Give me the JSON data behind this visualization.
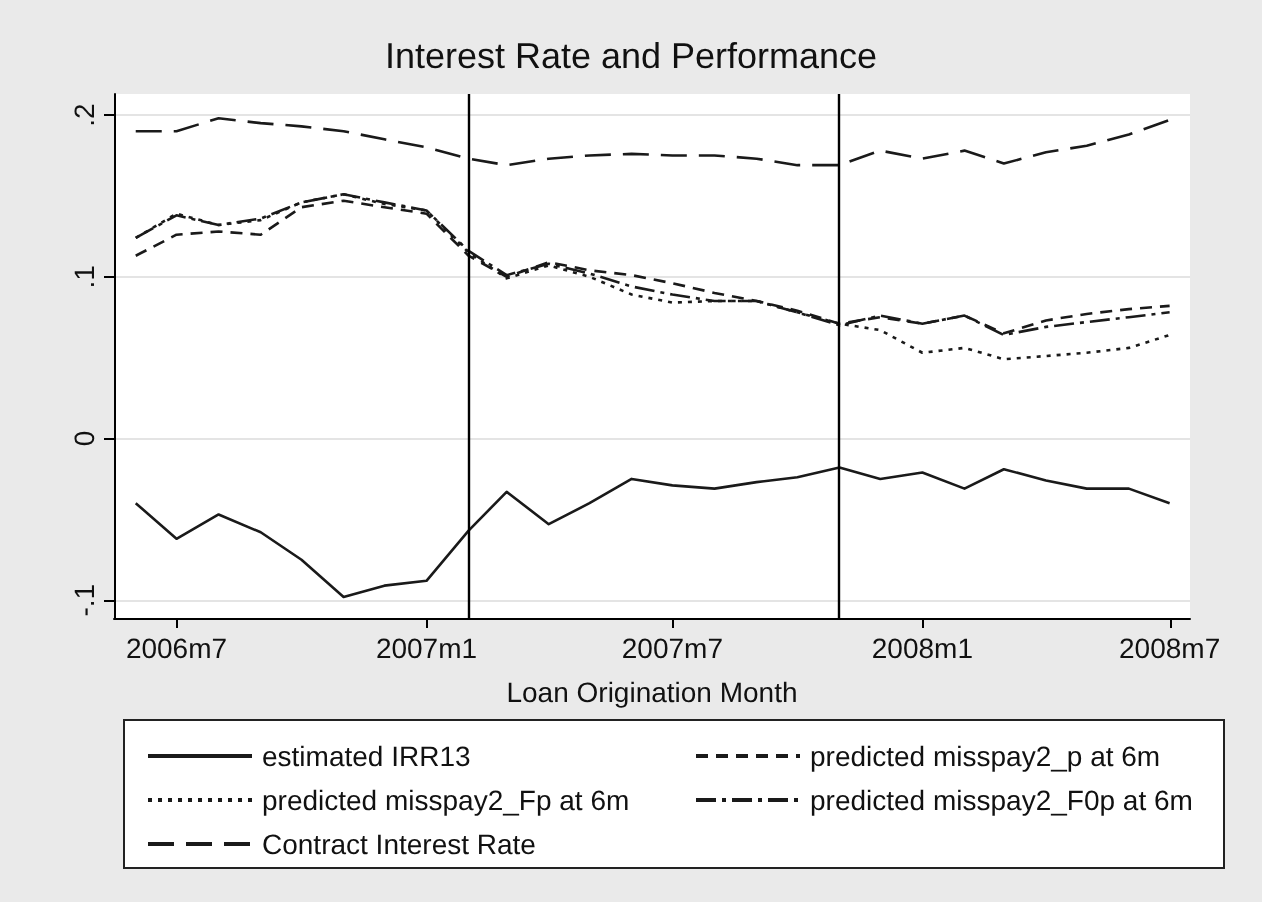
{
  "chart_data": {
    "type": "line",
    "title": "Interest Rate and Performance",
    "xlabel": "Loan Origination Month",
    "x": [
      "2006-06",
      "2006-07",
      "2006-08",
      "2006-09",
      "2006-10",
      "2006-11",
      "2006-12",
      "2007-01",
      "2007-02",
      "2007-03",
      "2007-04",
      "2007-05",
      "2007-06",
      "2007-07",
      "2007-08",
      "2007-09",
      "2007-10",
      "2007-11",
      "2007-12",
      "2008-01",
      "2008-02",
      "2008-03",
      "2008-04",
      "2008-05",
      "2008-06",
      "2008-07"
    ],
    "series": [
      {
        "name": "estimated IRR13",
        "color": "#1a1a1a",
        "line_style": "solid",
        "values": [
          -0.04,
          -0.062,
          -0.047,
          -0.058,
          -0.075,
          -0.098,
          -0.091,
          -0.088,
          -0.057,
          -0.033,
          -0.053,
          -0.04,
          -0.025,
          -0.029,
          -0.031,
          -0.027,
          -0.024,
          -0.018,
          -0.025,
          -0.021,
          -0.031,
          -0.019,
          -0.026,
          -0.031,
          -0.031,
          -0.04
        ]
      },
      {
        "name": "predicted misspay2_p at 6m",
        "color": "#1a1a1a",
        "line_style": "dashed",
        "values": [
          0.113,
          0.126,
          0.128,
          0.126,
          0.143,
          0.147,
          0.143,
          0.139,
          0.113,
          0.1,
          0.109,
          0.104,
          0.101,
          0.096,
          0.09,
          0.085,
          0.079,
          0.071,
          0.075,
          0.071,
          0.076,
          0.065,
          0.073,
          0.077,
          0.08,
          0.082
        ]
      },
      {
        "name": "predicted misspay2_Fp at 6m",
        "color": "#1a1a1a",
        "line_style": "dotted",
        "values": [
          0.124,
          0.139,
          0.132,
          0.135,
          0.146,
          0.151,
          0.145,
          0.141,
          0.115,
          0.099,
          0.107,
          0.1,
          0.089,
          0.084,
          0.085,
          0.085,
          0.078,
          0.071,
          0.067,
          0.053,
          0.056,
          0.049,
          0.051,
          0.053,
          0.056,
          0.064
        ]
      },
      {
        "name": "predicted misspay2_F0p at 6m",
        "color": "#1a1a1a",
        "line_style": "dashdot",
        "values": [
          0.124,
          0.138,
          0.132,
          0.136,
          0.146,
          0.151,
          0.146,
          0.141,
          0.116,
          0.101,
          0.108,
          0.102,
          0.094,
          0.089,
          0.085,
          0.085,
          0.078,
          0.07,
          0.076,
          0.071,
          0.076,
          0.064,
          0.069,
          0.072,
          0.075,
          0.078
        ]
      },
      {
        "name": "Contract Interest Rate",
        "color": "#1a1a1a",
        "line_style": "longdash",
        "values": [
          0.19,
          0.19,
          0.198,
          0.195,
          0.193,
          0.19,
          0.185,
          0.18,
          0.173,
          0.169,
          0.173,
          0.175,
          0.176,
          0.175,
          0.175,
          0.173,
          0.169,
          0.169,
          0.178,
          0.173,
          0.178,
          0.17,
          0.177,
          0.181,
          0.188,
          0.197
        ]
      }
    ],
    "xlim": [
      "2006-05-16",
      "2008-07-16"
    ],
    "xticks": [
      {
        "value": "2006-07",
        "label": "2006m7"
      },
      {
        "value": "2007-01",
        "label": "2007m1"
      },
      {
        "value": "2007-07",
        "label": "2007m7"
      },
      {
        "value": "2008-01",
        "label": "2008m1"
      },
      {
        "value": "2008-07",
        "label": "2008m7"
      }
    ],
    "ylim": [
      -0.111,
      0.213
    ],
    "yticks": [
      {
        "value": -0.1,
        "label": "-.1"
      },
      {
        "value": 0,
        "label": "0"
      },
      {
        "value": 0.1,
        "label": ".1"
      },
      {
        "value": 0.2,
        "label": ".2"
      }
    ],
    "ref_lines": [
      {
        "axis": "x",
        "value": "2007-02"
      },
      {
        "axis": "x",
        "value": "2007-11"
      }
    ],
    "grid": "y",
    "legend": "bottom",
    "marker": "none"
  }
}
